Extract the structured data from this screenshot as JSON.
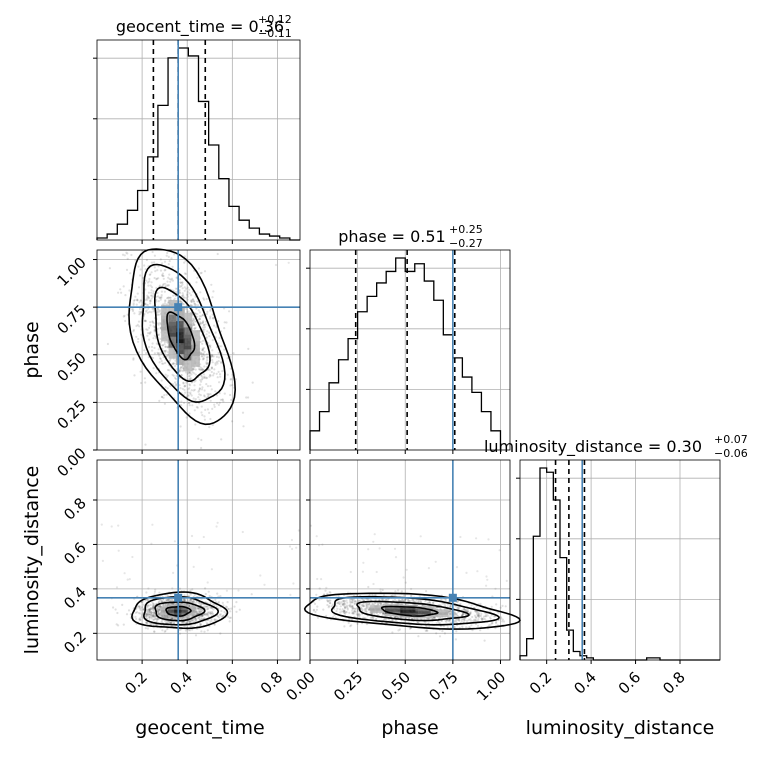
{
  "chart_data": {
    "type": "corner",
    "colors": {
      "truth": "#4682b4",
      "hist": "#000000",
      "grid": "#b0b0b0",
      "samples": "#555555"
    },
    "parameters": [
      "geocent_time",
      "phase",
      "luminosity_distance"
    ],
    "titles": [
      {
        "param": "geocent_time",
        "prefix": "geocent_time = ",
        "value": "0.36",
        "plus": "+0.12",
        "minus": "−0.11"
      },
      {
        "param": "phase",
        "prefix": "phase = ",
        "value": "0.51",
        "plus": "+0.25",
        "minus": "−0.27"
      },
      {
        "param": "luminosity_distance",
        "prefix": "luminosity_distance = ",
        "value": "0.30",
        "plus": "+0.07",
        "minus": "−0.06"
      }
    ],
    "axis_labels": {
      "x": [
        "geocent_time",
        "phase",
        "luminosity_distance"
      ],
      "y": [
        "phase",
        "luminosity_distance"
      ]
    },
    "ranges": {
      "geocent_time": [
        0.0,
        0.9
      ],
      "phase": [
        0.0,
        1.05
      ],
      "luminosity_distance": [
        0.08,
        0.98
      ]
    },
    "ticks": {
      "geocent_time": {
        "values": [
          0.2,
          0.4,
          0.6,
          0.8
        ],
        "labels": [
          "0.2",
          "0.4",
          "0.6",
          "0.8"
        ]
      },
      "phase": {
        "values": [
          0.0,
          0.25,
          0.5,
          0.75,
          1.0
        ],
        "labels": [
          "0.00",
          "0.25",
          "0.50",
          "0.75",
          "1.00"
        ]
      },
      "luminosity_distance": {
        "values": [
          0.2,
          0.4,
          0.6,
          0.8
        ],
        "labels": [
          "0.2",
          "0.4",
          "0.6",
          "0.8"
        ]
      }
    },
    "truths": {
      "geocent_time": 0.36,
      "phase": 0.75,
      "luminosity_distance": 0.36
    },
    "quantiles": {
      "geocent_time": [
        0.25,
        0.36,
        0.48
      ],
      "phase": [
        0.24,
        0.51,
        0.76
      ],
      "luminosity_distance": [
        0.24,
        0.3,
        0.37
      ]
    },
    "histograms": {
      "geocent_time": {
        "edges_start": 0.0,
        "bin_width": 0.045,
        "counts": [
          1,
          3,
          8,
          15,
          25,
          42,
          68,
          92,
          97,
          93,
          70,
          48,
          31,
          17,
          10,
          6,
          3,
          2,
          1,
          0
        ]
      },
      "phase": {
        "edges_start": 0.0,
        "bin_width": 0.05,
        "counts": [
          10,
          20,
          35,
          47,
          58,
          72,
          80,
          87,
          93,
          100,
          93,
          97,
          88,
          78,
          60,
          48,
          38,
          30,
          20,
          10
        ]
      },
      "luminosity_distance": {
        "edges_start": 0.08,
        "bin_width": 0.03,
        "counts": [
          2,
          10,
          58,
          90,
          88,
          75,
          48,
          14,
          4,
          2,
          1,
          0,
          0,
          0,
          0,
          0,
          0,
          0,
          0,
          1,
          1,
          0,
          0,
          0,
          0,
          0,
          0,
          0,
          0,
          0
        ]
      }
    },
    "scatter_2d": [
      {
        "x": "geocent_time",
        "y": "phase",
        "center": [
          0.37,
          0.6
        ],
        "spread": [
          0.1,
          0.2
        ],
        "correlation": -0.5
      },
      {
        "x": "geocent_time",
        "y": "luminosity_distance",
        "center": [
          0.36,
          0.3
        ],
        "spread": [
          0.09,
          0.035
        ],
        "correlation": 0.0
      },
      {
        "x": "phase",
        "y": "luminosity_distance",
        "center": [
          0.52,
          0.3
        ],
        "spread": [
          0.24,
          0.035
        ],
        "correlation": -0.4
      }
    ],
    "grid": true
  }
}
